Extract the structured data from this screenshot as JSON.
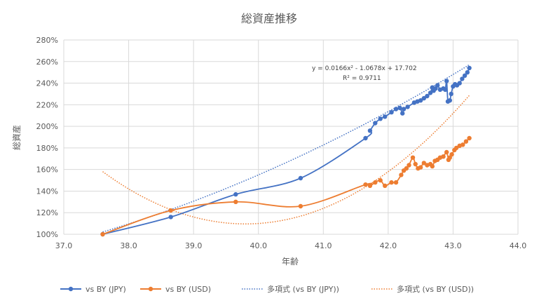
{
  "chart_data": {
    "type": "scatter",
    "title": "総資産推移",
    "xlabel": "年齢",
    "ylabel": "総資産",
    "xlim": [
      37.0,
      44.0
    ],
    "ylim": [
      1.0,
      2.8
    ],
    "x_ticks": [
      "37.0",
      "38.0",
      "39.0",
      "40.0",
      "41.0",
      "42.0",
      "43.0",
      "44.0"
    ],
    "y_ticks": [
      "100%",
      "120%",
      "140%",
      "160%",
      "180%",
      "200%",
      "220%",
      "240%",
      "260%",
      "280%"
    ],
    "grid": true,
    "legend_position": "bottom",
    "series": [
      {
        "name": "vs BY (JPY)",
        "color": "#4472C4",
        "x": [
          37.6,
          38.65,
          39.65,
          40.65,
          41.65,
          41.72,
          41.8,
          41.88,
          41.95,
          42.05,
          42.12,
          42.18,
          42.22,
          42.24,
          42.3,
          42.4,
          42.45,
          42.5,
          42.55,
          42.6,
          42.65,
          42.68,
          42.7,
          42.73,
          42.76,
          42.8,
          42.85,
          42.88,
          42.9,
          42.92,
          42.95,
          42.97,
          43.0,
          43.03,
          43.06,
          43.1,
          43.14,
          43.18,
          43.22,
          43.25
        ],
        "y": [
          1.0,
          1.16,
          1.37,
          1.52,
          1.89,
          1.96,
          2.03,
          2.07,
          2.09,
          2.13,
          2.16,
          2.17,
          2.12,
          2.16,
          2.18,
          2.22,
          2.23,
          2.24,
          2.26,
          2.28,
          2.31,
          2.36,
          2.33,
          2.35,
          2.38,
          2.34,
          2.35,
          2.34,
          2.42,
          2.23,
          2.24,
          2.3,
          2.37,
          2.39,
          2.38,
          2.4,
          2.44,
          2.47,
          2.5,
          2.54
        ]
      },
      {
        "name": "vs BY (USD)",
        "color": "#ED7D31",
        "x": [
          37.6,
          38.65,
          39.65,
          40.65,
          41.65,
          41.72,
          41.8,
          41.88,
          41.95,
          42.05,
          42.12,
          42.2,
          42.24,
          42.28,
          42.32,
          42.38,
          42.42,
          42.46,
          42.5,
          42.55,
          42.6,
          42.65,
          42.68,
          42.72,
          42.76,
          42.8,
          42.85,
          42.9,
          42.93,
          42.95,
          42.98,
          43.02,
          43.05,
          43.1,
          43.15,
          43.2,
          43.25
        ],
        "y": [
          1.0,
          1.22,
          1.3,
          1.26,
          1.46,
          1.45,
          1.48,
          1.5,
          1.45,
          1.48,
          1.48,
          1.55,
          1.59,
          1.61,
          1.64,
          1.71,
          1.65,
          1.61,
          1.62,
          1.66,
          1.64,
          1.65,
          1.63,
          1.68,
          1.69,
          1.71,
          1.72,
          1.76,
          1.69,
          1.71,
          1.74,
          1.78,
          1.8,
          1.82,
          1.83,
          1.86,
          1.89
        ]
      }
    ],
    "trendlines": [
      {
        "name": "多項式 (vs BY (JPY))",
        "color": "#4472C4",
        "type": "polynomial",
        "order": 2,
        "equation": "y = 0.0166x² - 1.0678x + 17.702",
        "r_squared": "R² = 0.9711",
        "coefficients": [
          0.0166,
          -1.0678,
          17.702
        ]
      },
      {
        "name": "多項式 (vs BY (USD))",
        "color": "#ED7D31",
        "type": "polynomial",
        "order": 2,
        "coefficients": [
          0.1,
          -7.96,
          159.5
        ]
      }
    ]
  }
}
